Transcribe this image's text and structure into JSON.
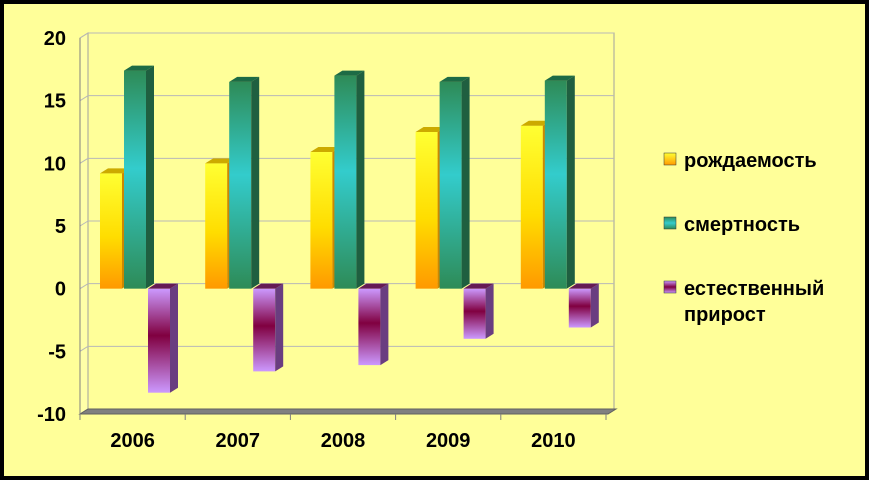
{
  "chart_data": {
    "type": "bar",
    "categories": [
      "2006",
      "2007",
      "2008",
      "2009",
      "2010"
    ],
    "series": [
      {
        "name": "рождаемость",
        "values": [
          9.2,
          10.0,
          10.9,
          12.5,
          13.0
        ],
        "color": "#ffcc00"
      },
      {
        "name": "смертность",
        "values": [
          17.4,
          16.5,
          17.0,
          16.5,
          16.6
        ],
        "color": "#33cccc"
      },
      {
        "name": "естественный прирост",
        "legend_lines": [
          "естественный",
          "прирост"
        ],
        "values": [
          -8.3,
          -6.6,
          -6.1,
          -4.0,
          -3.1
        ],
        "color": "#993399"
      }
    ],
    "ylim": [
      -10,
      20
    ],
    "yticks": [
      "20",
      "15",
      "10",
      "5",
      "0",
      "-5",
      "-10"
    ],
    "grid": true,
    "legend": "right",
    "title": "",
    "xlabel": "",
    "ylabel": ""
  }
}
